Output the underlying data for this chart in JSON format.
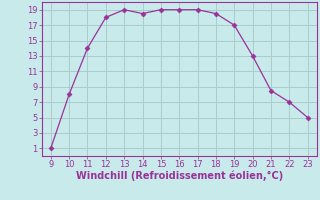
{
  "x": [
    9,
    10,
    11,
    12,
    13,
    14,
    15,
    16,
    17,
    18,
    19,
    20,
    21,
    22,
    23
  ],
  "y": [
    1,
    8,
    14,
    18,
    19,
    18.5,
    19,
    19,
    19,
    18.5,
    17,
    13,
    8.5,
    7,
    5
  ],
  "line_color": "#993399",
  "marker": "D",
  "marker_size": 2.5,
  "xlabel": "Windchill (Refroidissement éolien,°C)",
  "xlabel_color": "#993399",
  "background_color": "#c8eaea",
  "grid_color": "#aacccc",
  "tick_color": "#993399",
  "spine_color": "#993399",
  "xlim": [
    8.5,
    23.5
  ],
  "ylim": [
    0,
    20
  ],
  "xticks": [
    9,
    10,
    11,
    12,
    13,
    14,
    15,
    16,
    17,
    18,
    19,
    20,
    21,
    22,
    23
  ],
  "yticks": [
    1,
    3,
    5,
    7,
    9,
    11,
    13,
    15,
    17,
    19
  ],
  "xlabel_fontsize": 7,
  "tick_fontsize": 6
}
